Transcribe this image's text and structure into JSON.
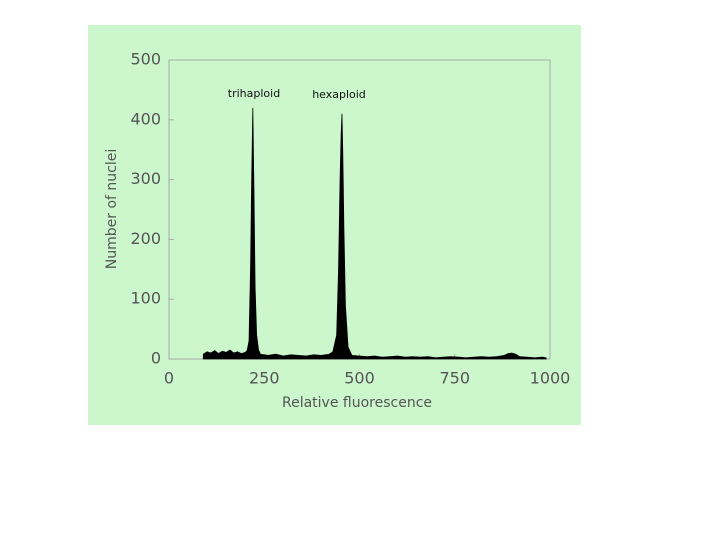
{
  "chart_data": {
    "type": "area",
    "x_label": "Relative fluorescence",
    "y_label": "Number of nuclei",
    "annotations": [
      "trihaploid",
      "hexaploid"
    ],
    "color": "#000000",
    "x": [
      90,
      100,
      110,
      120,
      130,
      140,
      150,
      160,
      170,
      180,
      190,
      200,
      205,
      210,
      214,
      217,
      220,
      223,
      226,
      230,
      235,
      240,
      250,
      260,
      280,
      300,
      320,
      340,
      360,
      380,
      400,
      420,
      430,
      440,
      445,
      449,
      452,
      454,
      456,
      459,
      463,
      470,
      480,
      500,
      520,
      540,
      560,
      580,
      600,
      620,
      640,
      660,
      680,
      700,
      720,
      740,
      760,
      780,
      800,
      820,
      840,
      860,
      880,
      890,
      900,
      910,
      920,
      940,
      960,
      980,
      990
    ],
    "values": [
      8,
      12,
      10,
      14,
      9,
      13,
      11,
      15,
      10,
      12,
      9,
      11,
      14,
      30,
      150,
      300,
      420,
      280,
      120,
      40,
      15,
      8,
      7,
      6,
      8,
      5,
      7,
      6,
      5,
      7,
      6,
      8,
      12,
      40,
      150,
      300,
      380,
      410,
      350,
      220,
      90,
      20,
      6,
      5,
      4,
      5,
      3,
      4,
      5,
      3,
      4,
      3,
      4,
      2,
      3,
      4,
      3,
      2,
      3,
      4,
      3,
      4,
      6,
      9,
      10,
      8,
      4,
      3,
      2,
      3,
      2
    ],
    "xlim": [
      0,
      1000
    ],
    "xticks": [
      0,
      250,
      500,
      750,
      1000
    ],
    "ylim": [
      0,
      500
    ],
    "yticks": [
      0,
      100,
      200,
      300,
      400,
      500
    ]
  }
}
